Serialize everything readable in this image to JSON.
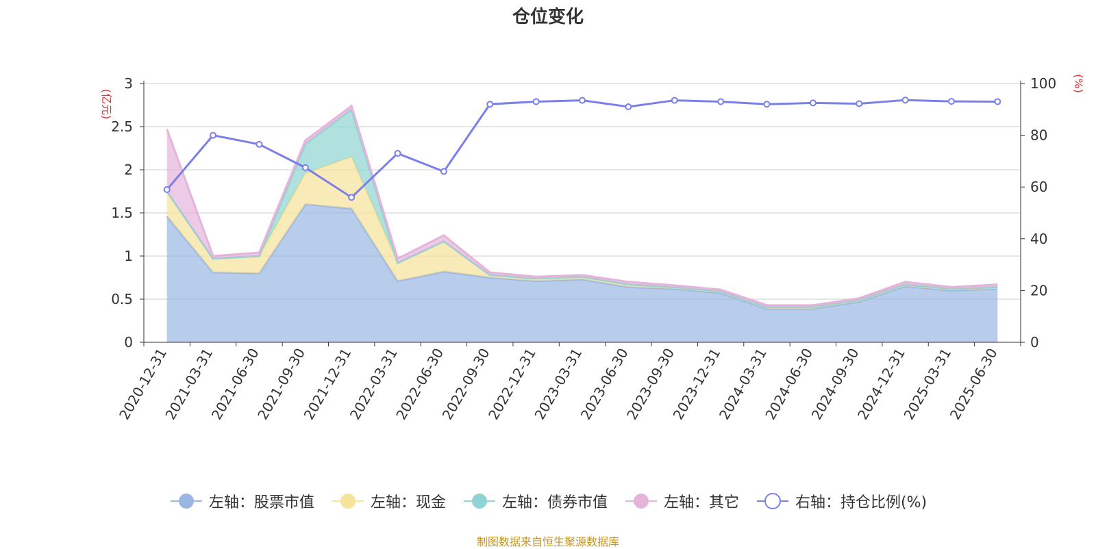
{
  "chart_data": {
    "type": "area",
    "title": "仓位变化",
    "ylabel_left": "(亿元)",
    "ylabel_right": "(%)",
    "ylim_left": [
      0,
      3
    ],
    "yticks_left": [
      "0",
      "0.5",
      "1",
      "1.5",
      "2",
      "2.5",
      "3"
    ],
    "ylim_right": [
      0,
      100
    ],
    "yticks_right": [
      "0",
      "20",
      "40",
      "60",
      "80",
      "100"
    ],
    "grid": true,
    "legend_position": "bottom",
    "categories": [
      "2020-12-31",
      "2021-03-31",
      "2021-06-30",
      "2021-09-30",
      "2021-12-31",
      "2022-03-31",
      "2022-06-30",
      "2022-09-30",
      "2022-12-31",
      "2023-03-31",
      "2023-06-30",
      "2023-09-30",
      "2023-12-31",
      "2024-03-31",
      "2024-06-30",
      "2024-09-30",
      "2024-12-31",
      "2025-03-31",
      "2025-06-30"
    ],
    "series": [
      {
        "name": "左轴：股票市值",
        "axis": "left",
        "kind": "stacked-area",
        "color": "#9ab6e2",
        "values": [
          1.46,
          0.81,
          0.8,
          1.6,
          1.55,
          0.71,
          0.82,
          0.75,
          0.71,
          0.73,
          0.64,
          0.62,
          0.57,
          0.39,
          0.39,
          0.47,
          0.65,
          0.6,
          0.62
        ]
      },
      {
        "name": "左轴：现金",
        "axis": "left",
        "kind": "stacked-area",
        "color": "#f7e39a",
        "values": [
          0.29,
          0.16,
          0.2,
          0.36,
          0.6,
          0.21,
          0.35,
          0.03,
          0.03,
          0.03,
          0.03,
          0.02,
          0.02,
          0.02,
          0.02,
          0.02,
          0.02,
          0.02,
          0.02
        ]
      },
      {
        "name": "左轴：债券市值",
        "axis": "left",
        "kind": "stacked-area",
        "color": "#8fd4d2",
        "values": [
          0,
          0,
          0,
          0.34,
          0.55,
          0,
          0,
          0,
          0,
          0,
          0,
          0,
          0,
          0,
          0,
          0,
          0,
          0,
          0
        ]
      },
      {
        "name": "左轴：其它",
        "axis": "left",
        "kind": "stacked-area",
        "color": "#e5b4db",
        "values": [
          0.72,
          0.03,
          0.04,
          0.04,
          0.04,
          0.05,
          0.07,
          0.03,
          0.02,
          0.02,
          0.03,
          0.02,
          0.02,
          0.02,
          0.02,
          0.02,
          0.03,
          0.02,
          0.03
        ]
      },
      {
        "name": "右轴：持仓比例(%)",
        "axis": "right",
        "kind": "line",
        "color": "#7b7fe8",
        "values": [
          59,
          80,
          76.5,
          67.5,
          56,
          73,
          66,
          92,
          93,
          93.5,
          91,
          93.5,
          93,
          92,
          92.5,
          92.2,
          93.6,
          93.1,
          93
        ]
      }
    ]
  },
  "source_text": "制图数据来自恒生聚源数据库"
}
